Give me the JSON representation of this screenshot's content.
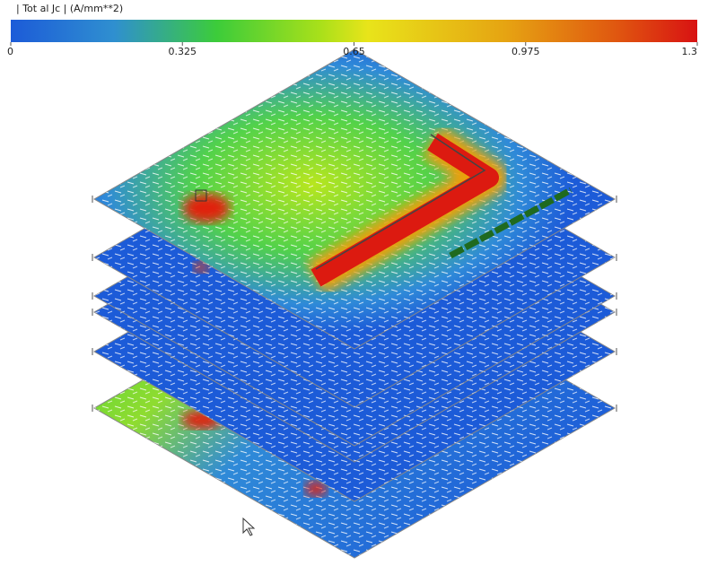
{
  "colorbar": {
    "title": "| Tot al Jc | (A/mm**2)",
    "lim": [
      0,
      1.3
    ],
    "ticks": [
      0,
      0.325,
      0.65,
      0.975,
      1.3
    ]
  }
}
